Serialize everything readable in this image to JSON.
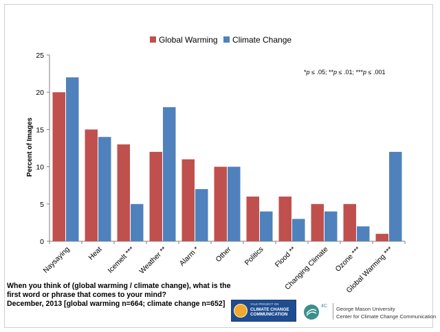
{
  "chart_data": {
    "type": "bar",
    "categories": [
      "Naysaying",
      "Heat",
      "Icemelt ***",
      "Weather **",
      "Alarm *",
      "Other",
      "Politics",
      "Flood **",
      "Changing Climate",
      "Ozone ***",
      "Global Warming ***"
    ],
    "series": [
      {
        "name": "Global Warming",
        "color": "#c0504d",
        "values": [
          20,
          15,
          13,
          12,
          11,
          10,
          6,
          6,
          5,
          5,
          1
        ]
      },
      {
        "name": "Climate Change",
        "color": "#4f81bd",
        "values": [
          22,
          14,
          5,
          18,
          7,
          10,
          4,
          3,
          4,
          2,
          12
        ]
      }
    ],
    "ylabel": "Percent of Images",
    "ylim": [
      0,
      25
    ],
    "yticks": [
      0,
      5,
      10,
      15,
      20,
      25
    ],
    "grid": false,
    "legend_position": "top-center",
    "annotation": "*p ≤ .05; **p ≤ .01; ***p ≤ .001"
  },
  "footer": {
    "question_lines": [
      "When you think of (global warming / climate change), what is the",
      "first word or phrase that comes to your mind?",
      "December, 2013 [global warming n=664; climate change n=652]"
    ],
    "banner_small": "YALE PROJECT ON",
    "banner_title": "CLIMATE CHANGE",
    "banner_sub": "COMMUNICATION",
    "logo_text": "4C",
    "university": "George Mason University",
    "center": "Center for Climate Change Communication"
  }
}
